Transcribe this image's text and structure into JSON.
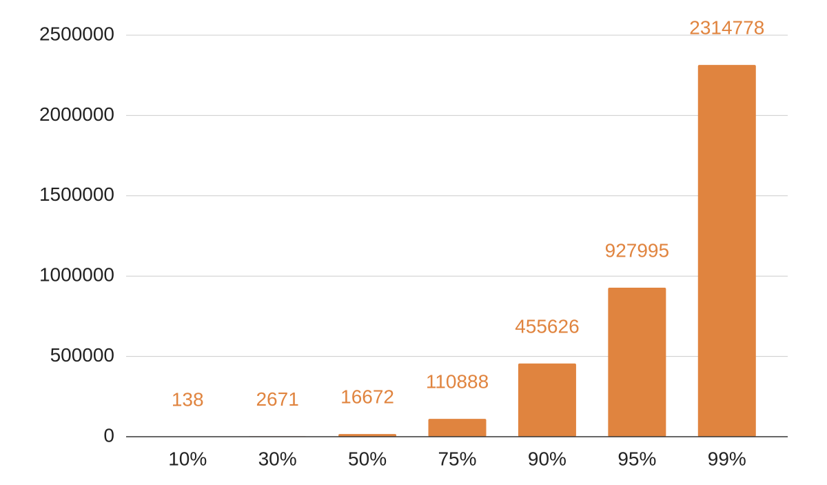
{
  "chart_data": {
    "type": "bar",
    "categories": [
      "10%",
      "30%",
      "50%",
      "75%",
      "90%",
      "95%",
      "99%"
    ],
    "values": [
      138,
      2671,
      16672,
      110888,
      455626,
      927995,
      2314778
    ],
    "color": "#e0843f",
    "ylim": [
      0,
      2500000
    ],
    "yticks": [
      0,
      500000,
      1000000,
      1500000,
      2000000,
      2500000
    ],
    "grid": true
  }
}
